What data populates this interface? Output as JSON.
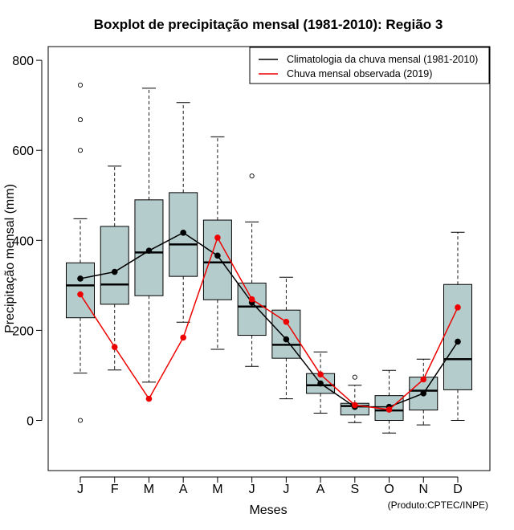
{
  "chart_data": {
    "type": "boxplot",
    "title": "Boxplot de precipitação mensal (1981-2010): Região 3",
    "xlabel": "Meses",
    "ylabel": "Precipitação mensal (mm)",
    "credit": "(Produto:CPTEC/INPE)",
    "ylim": [
      -110,
      830
    ],
    "yticks": [
      0,
      200,
      400,
      600,
      800
    ],
    "categories": [
      "J",
      "F",
      "M",
      "A",
      "M",
      "J",
      "J",
      "A",
      "S",
      "O",
      "N",
      "D"
    ],
    "boxes": [
      {
        "whisker_low": 105,
        "q1": 228,
        "median": 300,
        "q3": 350,
        "whisker_high": 448,
        "outliers": [
          0,
          600,
          668,
          745
        ]
      },
      {
        "whisker_low": 112,
        "q1": 258,
        "median": 302,
        "q3": 431,
        "whisker_high": 565,
        "outliers": []
      },
      {
        "whisker_low": 85,
        "q1": 277,
        "median": 373,
        "q3": 490,
        "whisker_high": 738,
        "outliers": []
      },
      {
        "whisker_low": 218,
        "q1": 320,
        "median": 391,
        "q3": 506,
        "whisker_high": 706,
        "outliers": []
      },
      {
        "whisker_low": 158,
        "q1": 268,
        "median": 351,
        "q3": 445,
        "whisker_high": 630,
        "outliers": []
      },
      {
        "whisker_low": 120,
        "q1": 189,
        "median": 253,
        "q3": 305,
        "whisker_high": 441,
        "outliers": [
          543
        ]
      },
      {
        "whisker_low": 48,
        "q1": 138,
        "median": 168,
        "q3": 245,
        "whisker_high": 318,
        "outliers": []
      },
      {
        "whisker_low": 16,
        "q1": 60,
        "median": 78,
        "q3": 104,
        "whisker_high": 152,
        "outliers": []
      },
      {
        "whisker_low": -5,
        "q1": 12,
        "median": 32,
        "q3": 38,
        "whisker_high": 78,
        "outliers": [
          96
        ]
      },
      {
        "whisker_low": -28,
        "q1": 0,
        "median": 22,
        "q3": 55,
        "whisker_high": 111,
        "outliers": []
      },
      {
        "whisker_low": -10,
        "q1": 23,
        "median": 66,
        "q3": 96,
        "whisker_high": 136,
        "outliers": []
      },
      {
        "whisker_low": 0,
        "q1": 68,
        "median": 136,
        "q3": 302,
        "whisker_high": 418,
        "outliers": []
      }
    ],
    "series": [
      {
        "name": "Climatologia da chuva mensal (1981-2010)",
        "color": "#000000",
        "values": [
          315,
          330,
          377,
          417,
          366,
          262,
          180,
          82,
          30,
          30,
          60,
          175
        ]
      },
      {
        "name": "Chuva mensal observada (2019)",
        "color": "#ee0000",
        "values": [
          280,
          163,
          48,
          184,
          406,
          269,
          219,
          102,
          34,
          24,
          91,
          251
        ]
      }
    ],
    "box_fill": "#b5cccc",
    "legend_position": "top-right"
  }
}
